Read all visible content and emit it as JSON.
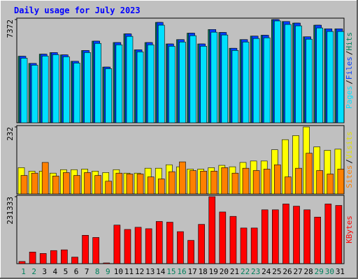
{
  "title": "Daily usage for July 2023",
  "legend_separator": "/",
  "chart_data": [
    {
      "type": "bar",
      "ylim": [
        0,
        7372
      ],
      "yticks": [
        7372
      ],
      "series": [
        {
          "name": "Hits",
          "color": "#00805c",
          "values": [
            4750,
            4240,
            4900,
            5010,
            4850,
            4390,
            5160,
            5830,
            3980,
            5730,
            6350,
            5210,
            5730,
            7170,
            5630,
            5940,
            6400,
            5630,
            6660,
            6450,
            5320,
            5940,
            6190,
            6250,
            7372,
            7230,
            7120,
            6140,
            6970,
            6710,
            6710
          ]
        },
        {
          "name": "Files",
          "color": "#0040ff",
          "values": [
            4750,
            4240,
            4900,
            5010,
            4850,
            4390,
            5160,
            5830,
            3980,
            5730,
            6350,
            5210,
            5730,
            7170,
            5630,
            5940,
            6400,
            5630,
            6660,
            6450,
            5320,
            5940,
            6190,
            6250,
            7372,
            7230,
            7120,
            6140,
            6970,
            6710,
            6710
          ]
        },
        {
          "name": "Pages",
          "color": "#00e0ff",
          "values": [
            4614,
            4112,
            4764,
            4865,
            4714,
            4263,
            5015,
            5667,
            3862,
            5567,
            6169,
            5065,
            5567,
            6971,
            5466,
            5767,
            6219,
            5466,
            6469,
            6269,
            5165,
            5767,
            6018,
            6068,
            7272,
            7021,
            6921,
            5968,
            6770,
            6520,
            6520
          ]
        }
      ]
    },
    {
      "type": "bar",
      "ylim": [
        0,
        232
      ],
      "yticks": [
        232
      ],
      "series": [
        {
          "name": "Visits",
          "color": "#ffff00",
          "values": [
            91,
            79,
            79,
            72,
            84,
            84,
            86,
            79,
            74,
            84,
            72,
            72,
            89,
            89,
            101,
            94,
            86,
            86,
            91,
            99,
            94,
            109,
            114,
            114,
            153,
            188,
            202,
            232,
            163,
            151,
            155
          ]
        },
        {
          "name": "Sites",
          "color": "#ff8000",
          "values": [
            64,
            72,
            109,
            62,
            74,
            64,
            74,
            64,
            44,
            72,
            69,
            69,
            59,
            52,
            77,
            111,
            81,
            79,
            79,
            91,
            72,
            89,
            81,
            86,
            101,
            59,
            89,
            141,
            81,
            69,
            86
          ]
        }
      ]
    },
    {
      "type": "bar",
      "ylim": [
        0,
        231333
      ],
      "yticks": [
        231333
      ],
      "categories": [
        "1",
        "2",
        "3",
        "4",
        "5",
        "6",
        "7",
        "8",
        "9",
        "10",
        "11",
        "12",
        "13",
        "14",
        "15",
        "16",
        "17",
        "18",
        "19",
        "20",
        "21",
        "22",
        "23",
        "24",
        "25",
        "26",
        "27",
        "28",
        "29",
        "30",
        "31"
      ],
      "category_colors": [
        "#00805c",
        "#00805c",
        "#000000",
        "#000000",
        "#000000",
        "#000000",
        "#000000",
        "#00805c",
        "#00805c",
        "#000000",
        "#000000",
        "#000000",
        "#000000",
        "#000000",
        "#00805c",
        "#00805c",
        "#000000",
        "#000000",
        "#000000",
        "#000000",
        "#000000",
        "#00805c",
        "#00805c",
        "#000000",
        "#000000",
        "#000000",
        "#000000",
        "#000000",
        "#00805c",
        "#00805c",
        "#000000"
      ],
      "series": [
        {
          "name": "KBytes",
          "color": "#ff0000",
          "values": [
            7544,
            40232,
            35203,
            45261,
            47776,
            22631,
            98066,
            90522,
            2514,
            133269,
            118182,
            125725,
            120696,
            145841,
            143326,
            110638,
            80464,
            135783,
            231333,
            178530,
            163443,
            123210,
            123210,
            186073,
            186073,
            206189,
            198645,
            186073,
            160928,
            206189,
            201160
          ]
        }
      ]
    }
  ]
}
